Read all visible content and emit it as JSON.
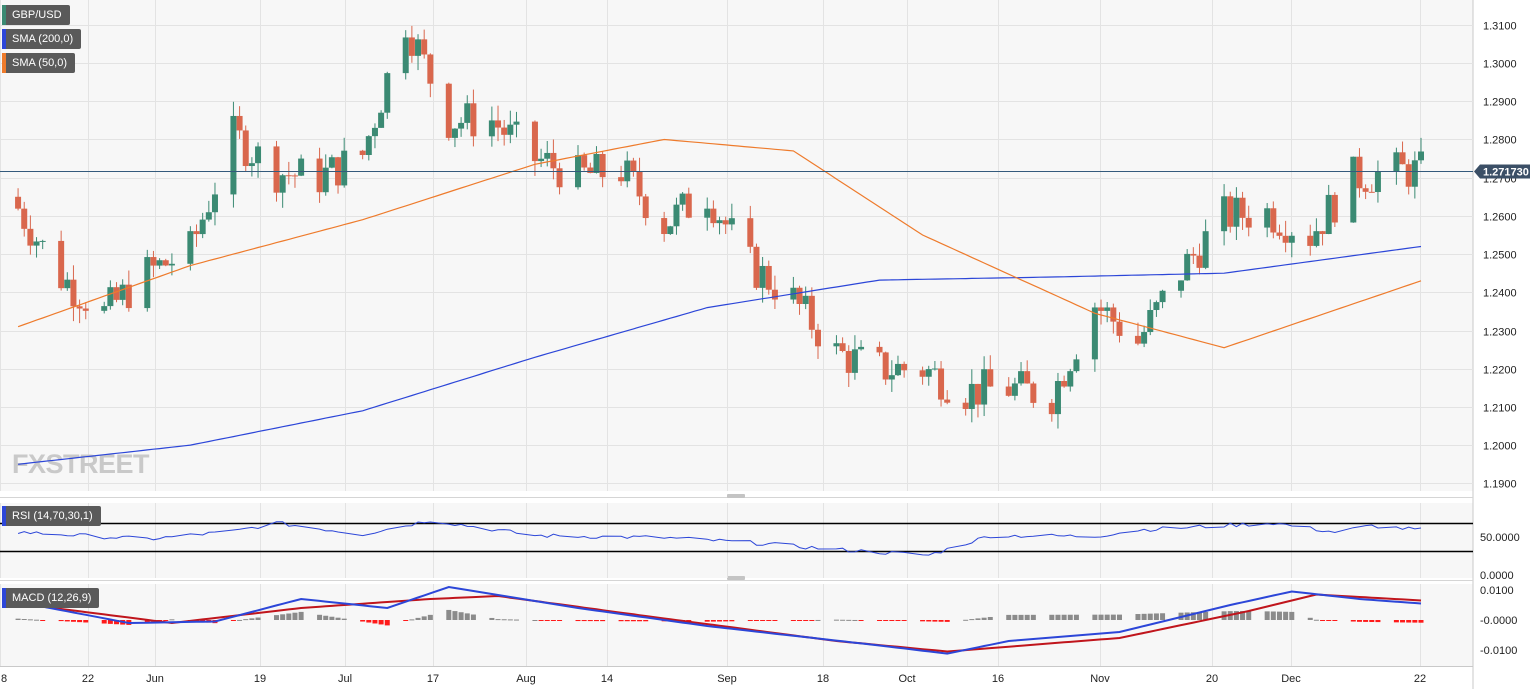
{
  "chart_data": [
    {
      "type": "candlestick",
      "panel": "price",
      "symbol": "GBP/USD",
      "last_price_label": "1.271730",
      "last_price": 1.27173,
      "ylim": [
        1.188,
        1.3165
      ],
      "y_ticks": [
        "1.1900",
        "1.2000",
        "1.2100",
        "1.2200",
        "1.2300",
        "1.2400",
        "1.2500",
        "1.2600",
        "1.2700",
        "1.2800",
        "1.2900",
        "1.3000",
        "1.3100"
      ],
      "x_ticks": [
        "8",
        "22",
        "Jun",
        "19",
        "Jul",
        "17",
        "Aug",
        "14",
        "Sep",
        "18",
        "Oct",
        "16",
        "Nov",
        "20",
        "Dec",
        "22"
      ],
      "x_range": [
        "2023-05-08",
        "2023-12-22"
      ],
      "watermark": "FXSTREET",
      "colors": {
        "up": "#3b8a73",
        "down": "#d9674d",
        "sma200": "#2c46d8",
        "sma50": "#ee7b2c",
        "last_line": "#345a7c"
      },
      "legend": [
        {
          "label": "GBP/USD",
          "color": "#3b8a73"
        },
        {
          "label": "SMA (200,0)",
          "color": "#2c46d8"
        },
        {
          "label": "SMA (50,0)",
          "color": "#ee7b2c"
        }
      ],
      "closes": [
        {
          "d": "2023-05-08",
          "c": 1.262
        },
        {
          "d": "2023-05-15",
          "c": 1.244
        },
        {
          "d": "2023-05-22",
          "c": 1.2345
        },
        {
          "d": "2023-05-29",
          "c": 1.245
        },
        {
          "d": "2023-06-05",
          "c": 1.251
        },
        {
          "d": "2023-06-12",
          "c": 1.281
        },
        {
          "d": "2023-06-19",
          "c": 1.2715
        },
        {
          "d": "2023-06-26",
          "c": 1.27
        },
        {
          "d": "2023-07-03",
          "c": 1.276
        },
        {
          "d": "2023-07-10",
          "c": 1.311
        },
        {
          "d": "2023-07-17",
          "c": 1.285
        },
        {
          "d": "2023-07-24",
          "c": 1.285
        },
        {
          "d": "2023-07-31",
          "c": 1.275
        },
        {
          "d": "2023-08-07",
          "c": 1.2705
        },
        {
          "d": "2023-08-14",
          "c": 1.272
        },
        {
          "d": "2023-08-21",
          "c": 1.258
        },
        {
          "d": "2023-08-28",
          "c": 1.266
        },
        {
          "d": "2023-09-04",
          "c": 1.247
        },
        {
          "d": "2023-09-11",
          "c": 1.238
        },
        {
          "d": "2023-09-18",
          "c": 1.224
        },
        {
          "d": "2023-09-25",
          "c": 1.22
        },
        {
          "d": "2023-10-02",
          "c": 1.22
        },
        {
          "d": "2023-10-09",
          "c": 1.214
        },
        {
          "d": "2023-10-16",
          "c": 1.215
        },
        {
          "d": "2023-10-23",
          "c": 1.213
        },
        {
          "d": "2023-10-30",
          "c": 1.237
        },
        {
          "d": "2023-11-06",
          "c": 1.227
        },
        {
          "d": "2023-11-13",
          "c": 1.2455
        },
        {
          "d": "2023-11-20",
          "c": 1.26
        },
        {
          "d": "2023-11-27",
          "c": 1.261
        },
        {
          "d": "2023-12-04",
          "c": 1.255
        },
        {
          "d": "2023-12-11",
          "c": 1.27
        },
        {
          "d": "2023-12-18",
          "c": 1.2717
        }
      ],
      "sma200": [
        {
          "d": "2023-05-08",
          "v": 1.195
        },
        {
          "d": "2023-06-05",
          "v": 1.2
        },
        {
          "d": "2023-07-03",
          "v": 1.209
        },
        {
          "d": "2023-07-31",
          "v": 1.223
        },
        {
          "d": "2023-08-28",
          "v": 1.236
        },
        {
          "d": "2023-09-25",
          "v": 1.2432
        },
        {
          "d": "2023-10-23",
          "v": 1.244
        },
        {
          "d": "2023-11-20",
          "v": 1.245
        },
        {
          "d": "2023-12-22",
          "v": 1.252
        }
      ],
      "sma50": [
        {
          "d": "2023-05-08",
          "v": 1.231
        },
        {
          "d": "2023-06-05",
          "v": 1.247
        },
        {
          "d": "2023-07-03",
          "v": 1.259
        },
        {
          "d": "2023-07-31",
          "v": 1.2735
        },
        {
          "d": "2023-08-21",
          "v": 1.28
        },
        {
          "d": "2023-09-11",
          "v": 1.277
        },
        {
          "d": "2023-10-02",
          "v": 1.255
        },
        {
          "d": "2023-10-30",
          "v": 1.2345
        },
        {
          "d": "2023-11-20",
          "v": 1.2255
        },
        {
          "d": "2023-12-22",
          "v": 1.243
        }
      ]
    },
    {
      "type": "line",
      "panel": "rsi",
      "label": "RSI (14,70,30,1)",
      "y_ticks": [
        "50.0000",
        "0.0000"
      ],
      "levels": [
        70,
        30
      ],
      "ylim": [
        0,
        100
      ],
      "colors": {
        "line": "#2c46d8",
        "level": "#000000"
      },
      "values": [
        {
          "d": "2023-05-08",
          "v": 57
        },
        {
          "d": "2023-05-29",
          "v": 47
        },
        {
          "d": "2023-06-12",
          "v": 58
        },
        {
          "d": "2023-06-19",
          "v": 70
        },
        {
          "d": "2023-07-03",
          "v": 54
        },
        {
          "d": "2023-07-14",
          "v": 74
        },
        {
          "d": "2023-07-31",
          "v": 52
        },
        {
          "d": "2023-08-21",
          "v": 49
        },
        {
          "d": "2023-09-04",
          "v": 42
        },
        {
          "d": "2023-09-18",
          "v": 32
        },
        {
          "d": "2023-10-03",
          "v": 24
        },
        {
          "d": "2023-10-13",
          "v": 52
        },
        {
          "d": "2023-10-30",
          "v": 51
        },
        {
          "d": "2023-11-06",
          "v": 60
        },
        {
          "d": "2023-11-28",
          "v": 70
        },
        {
          "d": "2023-12-08",
          "v": 57
        },
        {
          "d": "2023-12-14",
          "v": 66
        },
        {
          "d": "2023-12-22",
          "v": 60
        }
      ]
    },
    {
      "type": "macd",
      "panel": "macd",
      "label": "MACD (12,26,9)",
      "y_ticks": [
        "0.0100",
        "-0.0000",
        "-0.0100"
      ],
      "ylim": [
        -0.0122,
        0.0128
      ],
      "colors": {
        "macd": "#2c46d8",
        "signal": "#c0151c",
        "hist_pos": "#8b8b8b",
        "hist_neg": "#ff1a1a"
      },
      "macd": [
        {
          "d": "2023-05-08",
          "v": 0.006
        },
        {
          "d": "2023-05-26",
          "v": -0.001
        },
        {
          "d": "2023-06-09",
          "v": -0.0005
        },
        {
          "d": "2023-06-23",
          "v": 0.007
        },
        {
          "d": "2023-07-07",
          "v": 0.004
        },
        {
          "d": "2023-07-17",
          "v": 0.011
        },
        {
          "d": "2023-08-07",
          "v": 0.004
        },
        {
          "d": "2023-08-28",
          "v": -0.002
        },
        {
          "d": "2023-09-25",
          "v": -0.0085
        },
        {
          "d": "2023-10-06",
          "v": -0.0112
        },
        {
          "d": "2023-10-16",
          "v": -0.007
        },
        {
          "d": "2023-11-03",
          "v": -0.004
        },
        {
          "d": "2023-11-21",
          "v": 0.005
        },
        {
          "d": "2023-12-01",
          "v": 0.0095
        },
        {
          "d": "2023-12-12",
          "v": 0.007
        },
        {
          "d": "2023-12-22",
          "v": 0.0055
        }
      ],
      "signal": [
        {
          "d": "2023-05-08",
          "v": 0.0055
        },
        {
          "d": "2023-06-02",
          "v": -0.001
        },
        {
          "d": "2023-06-23",
          "v": 0.004
        },
        {
          "d": "2023-07-14",
          "v": 0.007
        },
        {
          "d": "2023-07-25",
          "v": 0.008
        },
        {
          "d": "2023-08-21",
          "v": 0.0005
        },
        {
          "d": "2023-09-18",
          "v": -0.007
        },
        {
          "d": "2023-10-06",
          "v": -0.0105
        },
        {
          "d": "2023-11-03",
          "v": -0.006
        },
        {
          "d": "2023-11-24",
          "v": 0.003
        },
        {
          "d": "2023-12-05",
          "v": 0.0085
        },
        {
          "d": "2023-12-22",
          "v": 0.0065
        }
      ]
    }
  ]
}
